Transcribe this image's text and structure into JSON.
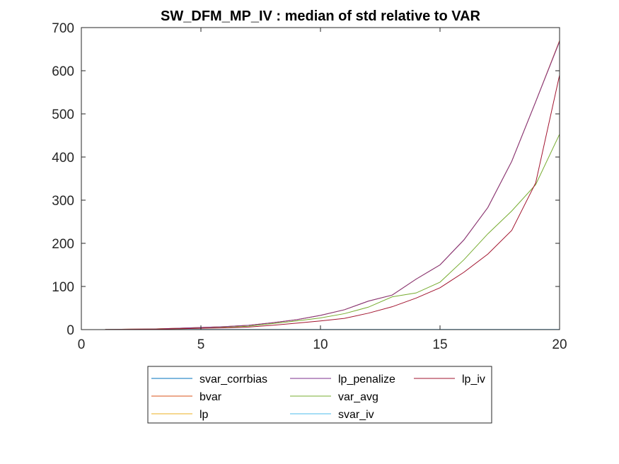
{
  "chart_data": {
    "type": "line",
    "title": "SW_DFM_MP_IV : median of std relative to VAR",
    "xlabel": "",
    "ylabel": "",
    "xlim": [
      0,
      20
    ],
    "ylim": [
      0,
      700
    ],
    "xticks": [
      0,
      5,
      10,
      15,
      20
    ],
    "yticks": [
      0,
      100,
      200,
      300,
      400,
      500,
      600,
      700
    ],
    "grid": false,
    "legend_location": "bottom-center",
    "x": [
      1,
      2,
      3,
      4,
      5,
      6,
      7,
      8,
      9,
      10,
      11,
      12,
      13,
      14,
      15,
      16,
      17,
      18,
      19,
      20
    ],
    "series": [
      {
        "name": "svar_corrbias",
        "color": "#0072BD",
        "values": [
          0.3,
          0.3,
          0.3,
          0.3,
          0.3,
          0.3,
          0.3,
          0.3,
          0.3,
          0.3,
          0.3,
          0.3,
          0.3,
          0.3,
          0.3,
          0.3,
          0.3,
          0.3,
          0.3,
          0.3
        ]
      },
      {
        "name": "bvar",
        "color": "#D95319",
        "values": [
          0.5,
          1,
          1.5,
          3,
          5,
          7,
          10,
          16,
          23,
          33,
          46,
          66,
          80,
          117,
          150,
          208,
          283,
          390,
          528,
          670
        ]
      },
      {
        "name": "lp",
        "color": "#EDB120",
        "values": [
          0.5,
          1,
          1.5,
          3,
          5,
          7,
          10,
          16,
          23,
          33,
          46,
          66,
          80,
          117,
          150,
          208,
          283,
          390,
          528,
          668
        ]
      },
      {
        "name": "lp_penalize",
        "color": "#7E2F8E",
        "values": [
          0.5,
          1,
          1.5,
          3,
          5,
          7,
          10,
          16,
          23,
          33,
          46,
          66,
          80,
          117,
          150,
          208,
          283,
          390,
          528,
          668
        ]
      },
      {
        "name": "var_avg",
        "color": "#77AC30",
        "values": [
          0.3,
          0.6,
          1,
          2,
          3,
          5,
          8,
          14,
          20,
          27,
          37,
          52,
          76,
          85,
          110,
          162,
          222,
          275,
          336,
          453
        ]
      },
      {
        "name": "svar_iv",
        "color": "#4DBEEE",
        "values": [
          0.3,
          0.3,
          0.3,
          0.3,
          0.3,
          0.3,
          0.3,
          0.3,
          0.3,
          0.3,
          0.3,
          0.3,
          0.3,
          0.3,
          0.3,
          0.3,
          0.3,
          0.3,
          0.3,
          0.3
        ]
      },
      {
        "name": "lp_iv",
        "color": "#A2142F",
        "values": [
          0.3,
          0.6,
          1,
          2,
          3,
          4,
          6,
          10,
          15,
          20,
          26,
          38,
          53,
          73,
          97,
          133,
          175,
          230,
          340,
          590
        ]
      }
    ]
  }
}
